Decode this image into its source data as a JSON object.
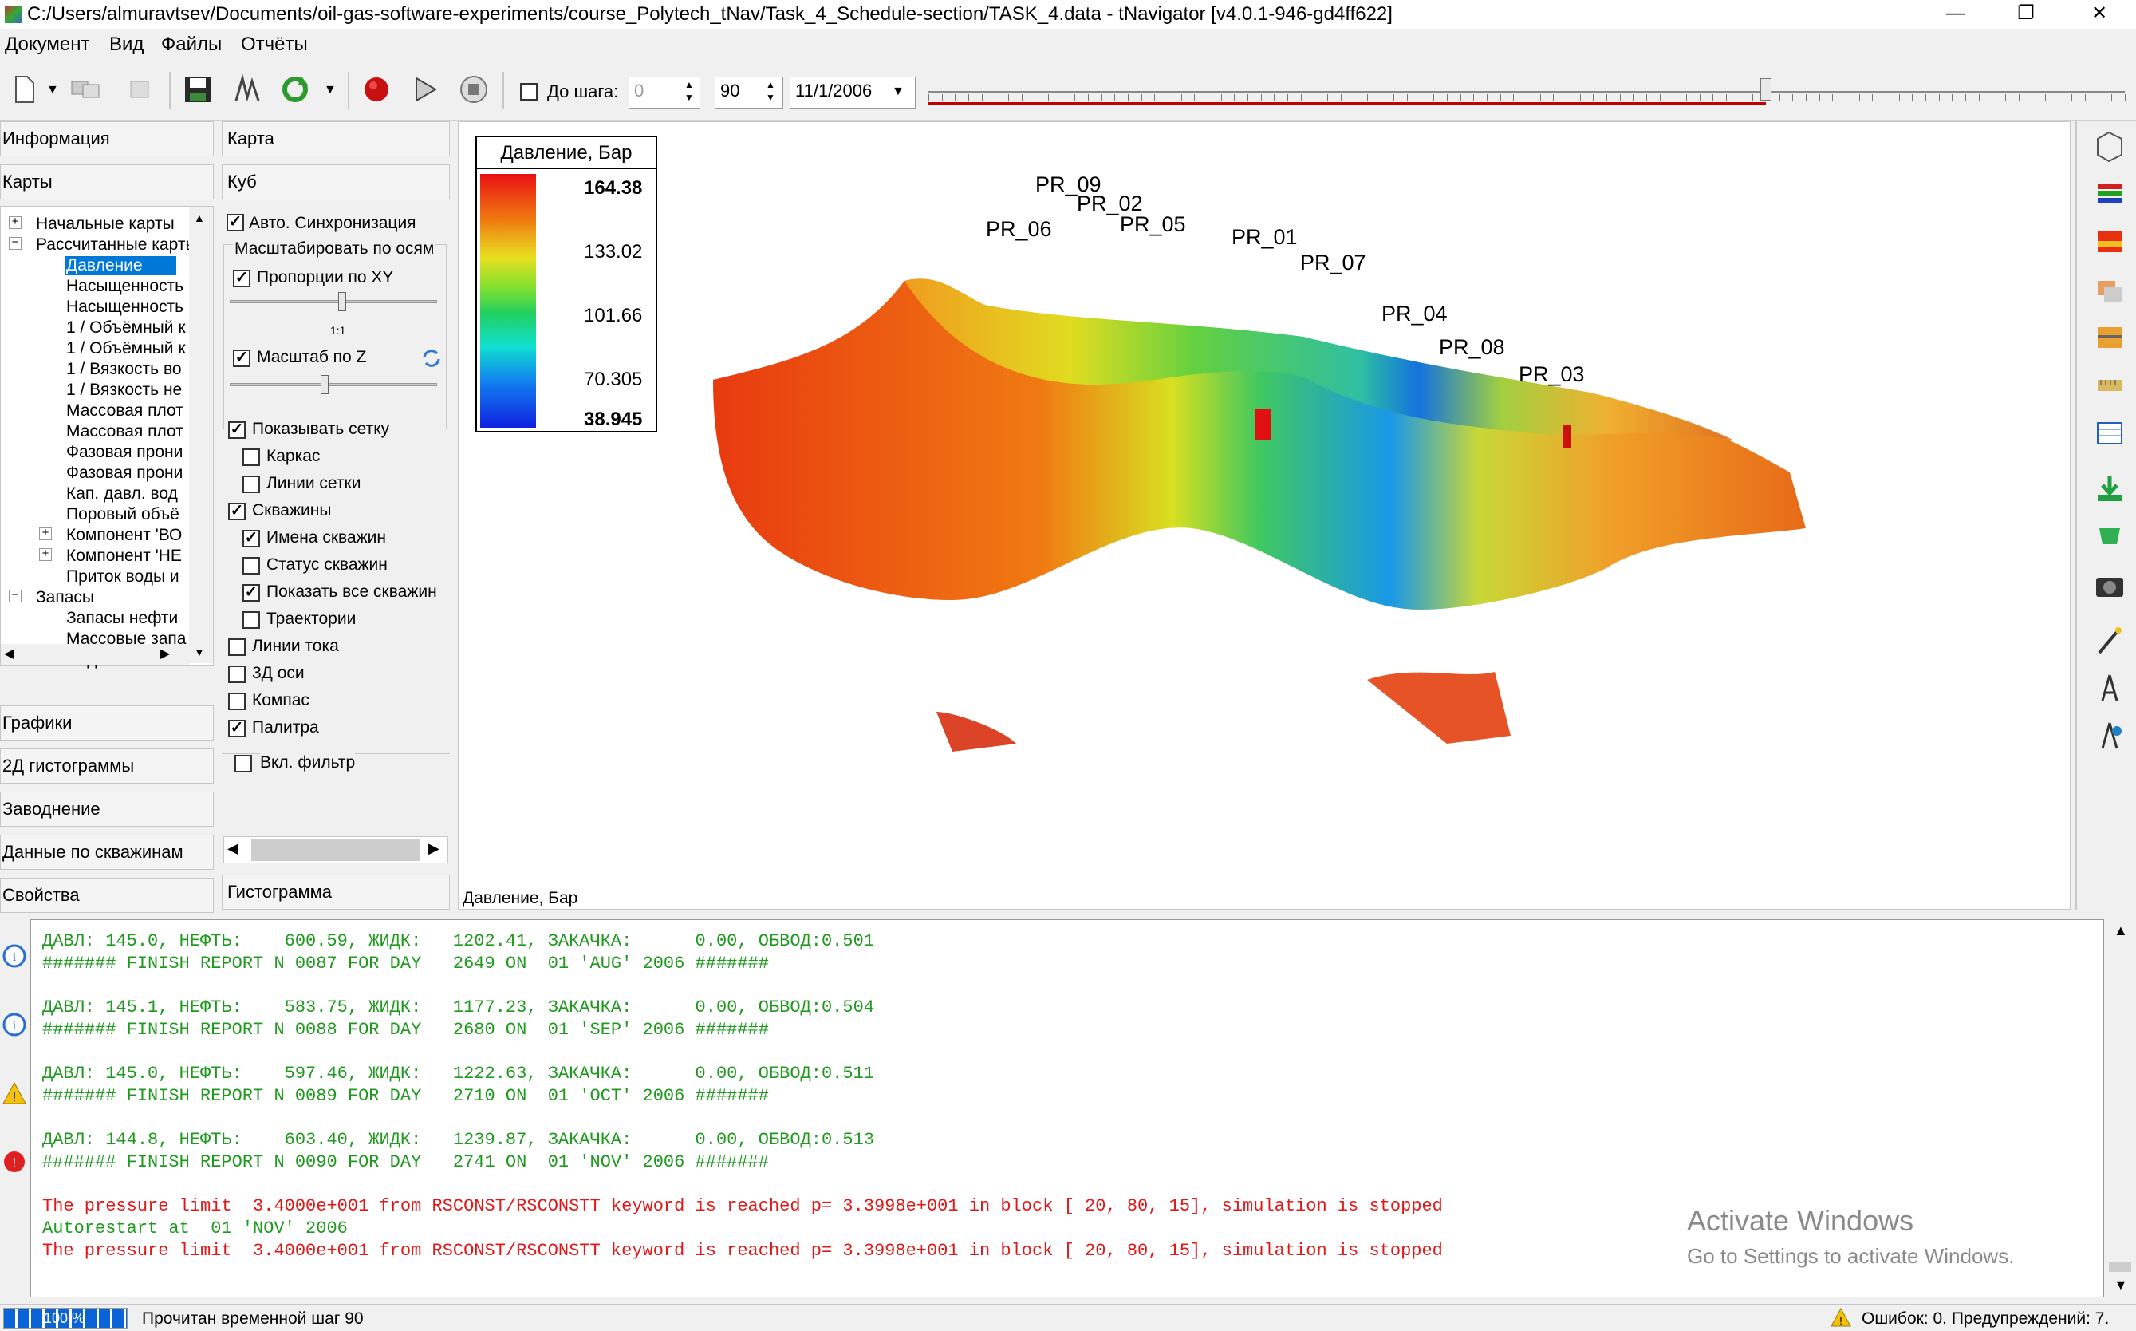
{
  "window": {
    "title": "C:/Users/almuravtsev/Documents/oil-gas-software-experiments/course_Polytech_tNav/Task_4_Schedule-section/TASK_4.data - tNavigator [v4.0.1-946-gd4ff622]",
    "minimize": "—",
    "maximize": "❐",
    "close": "✕"
  },
  "menu": [
    "Документ",
    "Вид",
    "Файлы",
    "Отчёты"
  ],
  "toolbar": {
    "step_checkbox_label": "До шага:",
    "step_value": "0",
    "step_count": "90",
    "date": "11/1/2006",
    "progress": 0.7
  },
  "left_panel": {
    "sections_top": [
      "Информация",
      "Карты"
    ],
    "tree": [
      {
        "label": "Начальные карты",
        "level": 0,
        "toggle": "+"
      },
      {
        "label": "Рассчитанные карты",
        "level": 0,
        "toggle": "−"
      },
      {
        "label": "Давление",
        "level": 1,
        "selected": true
      },
      {
        "label": "Насыщенность",
        "level": 1
      },
      {
        "label": "Насыщенность",
        "level": 1
      },
      {
        "label": "1 / Объёмный к",
        "level": 1
      },
      {
        "label": "1 / Объёмный к",
        "level": 1
      },
      {
        "label": "1 / Вязкость во",
        "level": 1
      },
      {
        "label": "1 / Вязкость не",
        "level": 1
      },
      {
        "label": "Массовая плот",
        "level": 1
      },
      {
        "label": "Массовая плот",
        "level": 1
      },
      {
        "label": "Фазовая прони",
        "level": 1
      },
      {
        "label": "Фазовая прони",
        "level": 1
      },
      {
        "label": "Кап. давл. вод",
        "level": 1
      },
      {
        "label": "Поровый объё",
        "level": 1
      },
      {
        "label": "Компонент 'ВО",
        "level": 1,
        "toggle": "+"
      },
      {
        "label": "Компонент 'НЕ",
        "level": 1,
        "toggle": "+"
      },
      {
        "label": "Приток воды и",
        "level": 1
      },
      {
        "label": "Запасы",
        "level": 0,
        "toggle": "−"
      },
      {
        "label": "Запасы нефти",
        "level": 1
      },
      {
        "label": "Массовые запа",
        "level": 1
      },
      {
        "label": "Подвижные за",
        "level": 1
      }
    ],
    "sections_bottom": [
      "Графики",
      "2Д гистограммы",
      "Заводнение",
      "Данные по скважинам",
      "Свойства"
    ]
  },
  "settings_panel": {
    "tabs": [
      "Карта",
      "Куб"
    ],
    "auto_sync": "Авто. Синхронизация",
    "scale_group": "Масштабировать по осям",
    "prop_xy": "Пропорции по XY",
    "ratio_label": "1:1",
    "scale_z": "Масштаб по Z",
    "options": [
      {
        "label": "Показывать сетку",
        "checked": true,
        "indent": 0
      },
      {
        "label": "Каркас",
        "checked": false,
        "indent": 1
      },
      {
        "label": "Линии сетки",
        "checked": false,
        "indent": 1
      },
      {
        "label": "Скважины",
        "checked": true,
        "indent": 0
      },
      {
        "label": "Имена скважин",
        "checked": true,
        "indent": 1
      },
      {
        "label": "Статус скважин",
        "checked": false,
        "indent": 1
      },
      {
        "label": "Показать все скважин",
        "checked": true,
        "indent": 1
      },
      {
        "label": "Траектории",
        "checked": false,
        "indent": 1
      },
      {
        "label": "Линии тока",
        "checked": false,
        "indent": 0
      },
      {
        "label": "3Д оси",
        "checked": false,
        "indent": 0
      },
      {
        "label": "Компас",
        "checked": false,
        "indent": 0
      },
      {
        "label": "Палитра",
        "checked": true,
        "indent": 0
      }
    ],
    "filter": "Вкл. фильтр",
    "histogram": "Гистограмма"
  },
  "viewport": {
    "caption": "Давление, Бар",
    "legend_title": "Давление, Бар",
    "legend_ticks": [
      "164.38",
      "133.02",
      "101.66",
      "70.305",
      "38.945"
    ],
    "wells": [
      "PR_09",
      "PR_02",
      "PR_05",
      "PR_06",
      "PR_01",
      "PR_07",
      "PR_04",
      "PR_08",
      "PR_03"
    ],
    "watermark_title": "Activate Windows",
    "watermark_sub": "Go to Settings to activate Windows."
  },
  "log": [
    {
      "text": "ДАВЛ: 145.0, НЕФТЬ:    600.59, ЖИДК:   1202.41, ЗАКАЧКА:      0.00, ОБВОД:0.501",
      "color": "#1f9a1f"
    },
    {
      "text": "####### FINISH REPORT N 0087 FOR DAY   2649 ON  01 'AUG' 2006 #######",
      "color": "#1f9a1f"
    },
    {
      "text": "",
      "color": "#1f9a1f"
    },
    {
      "text": "ДАВЛ: 145.1, НЕФТЬ:    583.75, ЖИДК:   1177.23, ЗАКАЧКА:      0.00, ОБВОД:0.504",
      "color": "#1f9a1f"
    },
    {
      "text": "####### FINISH REPORT N 0088 FOR DAY   2680 ON  01 'SEP' 2006 #######",
      "color": "#1f9a1f"
    },
    {
      "text": "",
      "color": "#1f9a1f"
    },
    {
      "text": "ДАВЛ: 145.0, НЕФТЬ:    597.46, ЖИДК:   1222.63, ЗАКАЧКА:      0.00, ОБВОД:0.511",
      "color": "#1f9a1f"
    },
    {
      "text": "####### FINISH REPORT N 0089 FOR DAY   2710 ON  01 'OCT' 2006 #######",
      "color": "#1f9a1f"
    },
    {
      "text": "",
      "color": "#1f9a1f"
    },
    {
      "text": "ДАВЛ: 144.8, НЕФТЬ:    603.40, ЖИДК:   1239.87, ЗАКАЧКА:      0.00, ОБВОД:0.513",
      "color": "#1f9a1f"
    },
    {
      "text": "####### FINISH REPORT N 0090 FOR DAY   2741 ON  01 'NOV' 2006 #######",
      "color": "#1f9a1f"
    },
    {
      "text": "",
      "color": "#1f9a1f"
    },
    {
      "text": "The pressure limit  3.4000e+001 from RSCONST/RSCONSTT keyword is reached p= 3.3998e+001 in block [ 20, 80, 15], simulation is stopped",
      "color": "#e01818"
    },
    {
      "text": "Autorestart at  01 'NOV' 2006",
      "color": "#1f9a1f"
    },
    {
      "text": "The pressure limit  3.4000e+001 from RSCONST/RSCONSTT keyword is reached p= 3.3998e+001 in block [ 20, 80, 15], simulation is stopped",
      "color": "#e01818"
    }
  ],
  "status": {
    "progress_text": "100 %",
    "message": "Прочитан временной шаг 90",
    "errors": "Ошибок: 0. Предупреждений: 7."
  },
  "colors": {
    "accent": "#0078d7",
    "log_green": "#1f9a1f",
    "log_red": "#e01818"
  }
}
